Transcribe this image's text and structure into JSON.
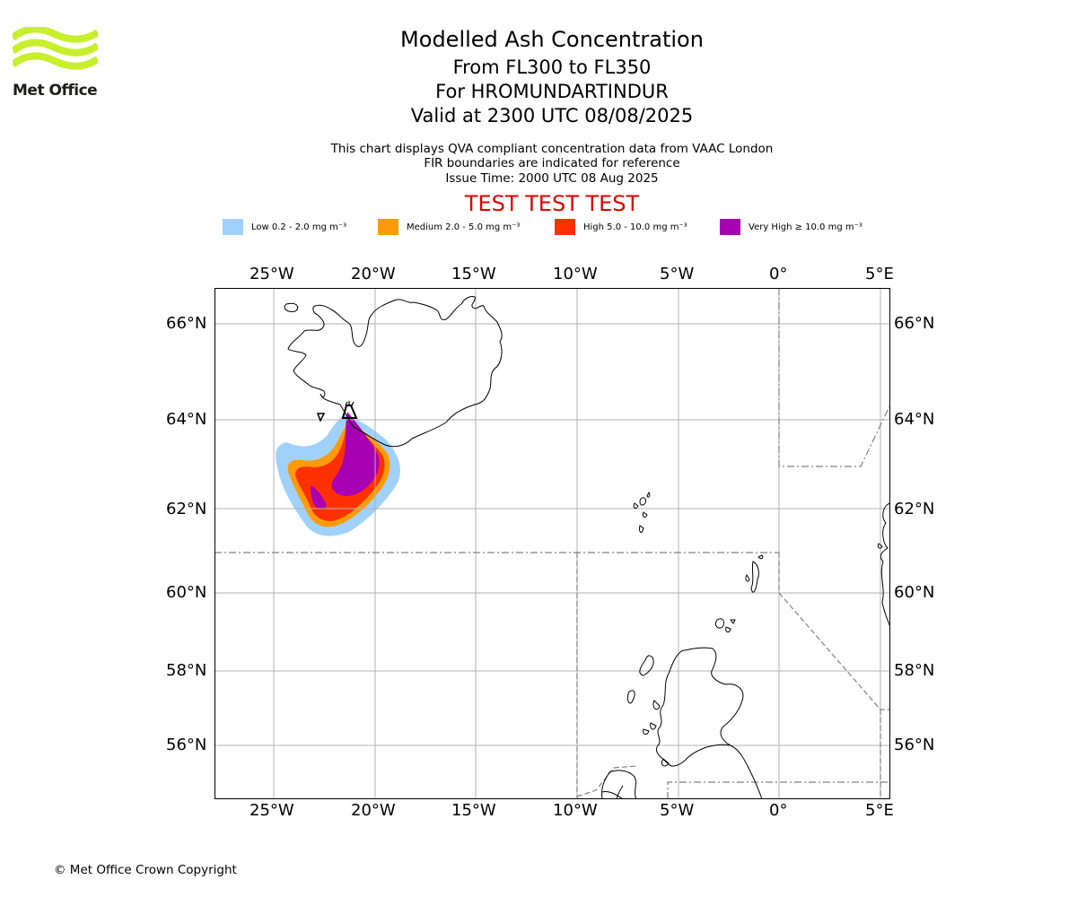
{
  "logo": {
    "text": "Met Office",
    "color": "#c7ef2b"
  },
  "header": {
    "title": "Modelled Ash Concentration",
    "subtitle_levels": "From FL300 to FL350",
    "subtitle_volcano": "For HROMUNDARTINDUR",
    "subtitle_valid": "Valid at 2300 UTC 08/08/2025",
    "info_line1": "This chart displays QVA compliant concentration data from VAAC London",
    "info_line2": "FIR boundaries are indicated for reference",
    "info_line3": "Issue Time: 2000 UTC 08 Aug 2025",
    "test_banner": "TEST TEST TEST"
  },
  "legend": [
    {
      "label": "Low 0.2 - 2.0 mg m⁻³",
      "color": "#a0d1fa"
    },
    {
      "label": "Medium 2.0 - 5.0 mg m⁻³",
      "color": "#ff9a0a"
    },
    {
      "label": "High 5.0 - 10.0 mg m⁻³",
      "color": "#ff3000"
    },
    {
      "label": "Very High ≥ 10.0 mg m⁻³",
      "color": "#a800b3"
    }
  ],
  "map": {
    "lon_ticks": [
      "25°W",
      "20°W",
      "15°W",
      "10°W",
      "5°W",
      "0°",
      "5°E"
    ],
    "lat_ticks": [
      "66°N",
      "64°N",
      "62°N",
      "60°N",
      "58°N",
      "56°N"
    ],
    "lon_range": [
      -28,
      5.5
    ],
    "lat_range": [
      54.8,
      66.8
    ],
    "grid": true,
    "volcano_lon": -21.2,
    "volcano_lat": 64.1
  },
  "footer": {
    "copyright": "© Met Office Crown Copyright"
  }
}
